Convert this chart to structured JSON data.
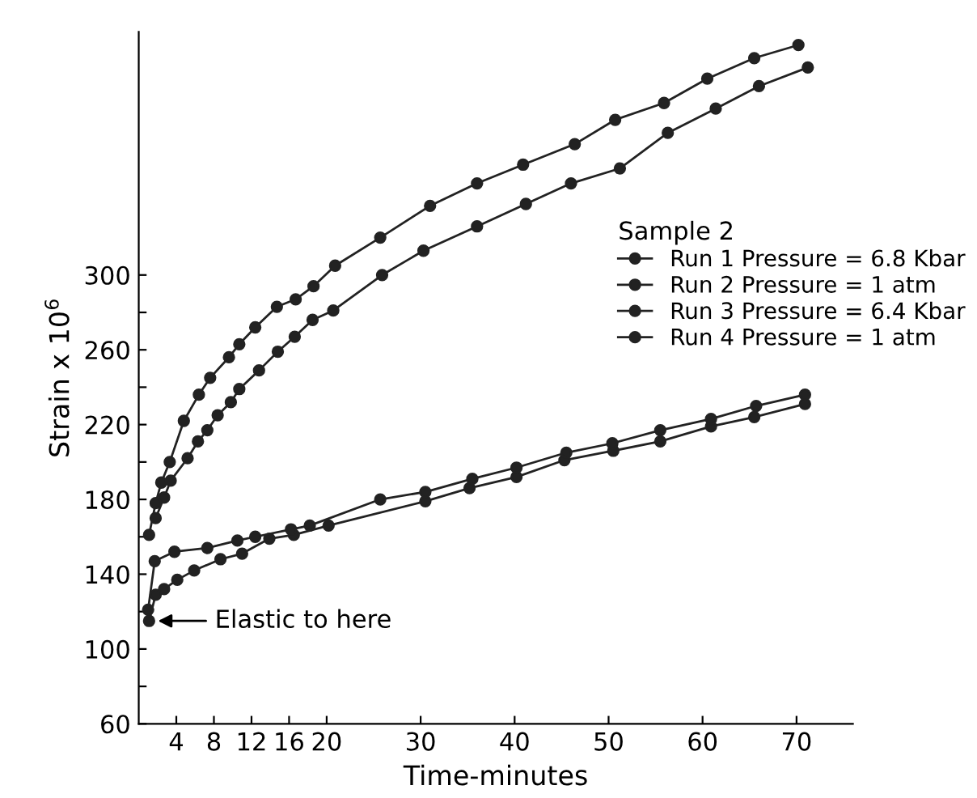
{
  "chart_data": {
    "type": "line",
    "xlabel": "Time-minutes",
    "ylabel": "Strain x 10$^{6}$",
    "legend_title": "Sample 2",
    "legend": "right",
    "marker": "circle",
    "line_style": "solid",
    "grid": false,
    "xlim": [
      0,
      76
    ],
    "ylim": [
      60,
      430
    ],
    "xticks": [
      4,
      8,
      12,
      16,
      20,
      30,
      40,
      50,
      60,
      70
    ],
    "yticks": [
      60,
      {
        "value": 80,
        "label": null
      },
      100,
      {
        "value": 120,
        "label": null
      },
      140,
      {
        "value": 160,
        "label": null
      },
      180,
      {
        "value": 200,
        "label": null
      },
      220,
      {
        "value": 240,
        "label": null
      },
      260,
      {
        "value": 280,
        "label": null
      },
      300
    ],
    "series": [
      {
        "name": "Run 1 Pressure = 6.8 Kbar",
        "color": "#222222",
        "x": [
          1.1,
          1.8,
          2.7,
          4.1,
          5.9,
          8.7,
          11,
          13.9,
          16.5,
          20.2,
          30.5,
          35.2,
          40.2,
          45.3,
          50.5,
          55.5,
          60.9,
          65.5,
          70.9
        ],
        "values": [
          115,
          129,
          132,
          137,
          142,
          148,
          151,
          159,
          161,
          166,
          179,
          186,
          192,
          201,
          206,
          211,
          219,
          224,
          231
        ]
      },
      {
        "name": "Run 2 Pressure = 1 atm",
        "color": "#222222",
        "x": [
          1.8,
          2.7,
          3.4,
          5.2,
          6.3,
          7.3,
          8.4,
          9.8,
          10.7,
          12.8,
          14.8,
          16.6,
          18.5,
          20.7,
          25.9,
          30.3,
          36,
          41.2,
          46,
          51.2,
          56.3,
          61.4,
          66,
          71.2
        ],
        "values": [
          170,
          181,
          190,
          202,
          211,
          217,
          225,
          232,
          239,
          249,
          259,
          267,
          276,
          281,
          300,
          313,
          326,
          338,
          349,
          357,
          376,
          389,
          401,
          411
        ]
      },
      {
        "name": "Run 3 Pressure = 6.4 Kbar",
        "color": "#222222",
        "x": [
          1,
          1.7,
          3.8,
          7.3,
          10.5,
          12.4,
          16.2,
          18.2,
          25.7,
          30.5,
          35.5,
          40.2,
          45.5,
          50.4,
          55.5,
          60.9,
          65.7,
          70.9
        ],
        "values": [
          121,
          147,
          152,
          154,
          158,
          160,
          164,
          166,
          180,
          184,
          191,
          197,
          205,
          210,
          217,
          223,
          230,
          236
        ]
      },
      {
        "name": "Run 4 Pressure = 1 atm",
        "color": "#222222",
        "x": [
          1.1,
          1.8,
          2.4,
          3.3,
          4.8,
          6.4,
          7.6,
          9.6,
          10.7,
          12.4,
          14.7,
          16.7,
          18.6,
          20.9,
          25.7,
          31,
          36,
          40.9,
          46.4,
          50.7,
          55.9,
          60.5,
          65.5,
          70.2
        ],
        "values": [
          161,
          178,
          189,
          200,
          222,
          236,
          245,
          256,
          263,
          272,
          283,
          287,
          294,
          305,
          320,
          337,
          349,
          359,
          370,
          383,
          392,
          405,
          416,
          423
        ]
      }
    ],
    "annotations": [
      {
        "text": "Elastic to here",
        "x": 1.1,
        "y": 115
      }
    ]
  }
}
